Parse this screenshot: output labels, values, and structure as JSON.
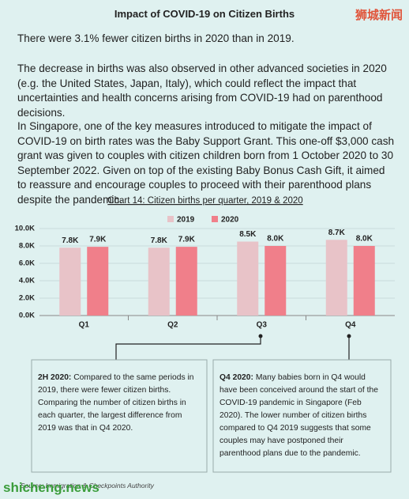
{
  "header": {
    "title": "Impact of COVID-19 on Citizen Births",
    "watermark": "狮城新闻"
  },
  "paragraphs": [
    "There were 3.1% fewer citizen births in 2020 than in 2019.",
    "The decrease in births was also observed in other advanced societies in 2020 (e.g. the United States, Japan, Italy), which could reflect the impact that uncertainties and health concerns arising from COVID-19 had on parenthood decisions.",
    "In Singapore, one of the key measures introduced to mitigate the impact of COVID-19 on birth rates was the Baby Support Grant. This one-off $3,000 cash grant was given to couples with citizen children born from 1 October 2020 to 30 September 2022. Given on top of the existing Baby Bonus Cash Gift, it aimed to reassure and encourage couples to proceed with their parenthood plans despite the pandemic."
  ],
  "chart_data": {
    "type": "bar",
    "title": "Chart 14: Citizen births per quarter, 2019 & 2020",
    "categories": [
      "Q1",
      "Q2",
      "Q3",
      "Q4"
    ],
    "series": [
      {
        "name": "2019",
        "color": "#e8c3c8",
        "values": [
          7800,
          7800,
          8500,
          8700
        ],
        "value_labels": [
          "7.8K",
          "7.8K",
          "8.5K",
          "8.7K"
        ]
      },
      {
        "name": "2020",
        "color": "#f07f8a",
        "values": [
          7900,
          7900,
          8000,
          8000
        ],
        "value_labels": [
          "7.9K",
          "7.9K",
          "8.0K",
          "8.0K"
        ]
      }
    ],
    "ylim": [
      0,
      10000
    ],
    "yticks": [
      {
        "value": 0,
        "label": "0.0K"
      },
      {
        "value": 2000,
        "label": "2.0K"
      },
      {
        "value": 4000,
        "label": "4.0K"
      },
      {
        "value": 6000,
        "label": "6.0K"
      },
      {
        "value": 8000,
        "label": "8.0K"
      },
      {
        "value": 10000,
        "label": "10.0K"
      }
    ],
    "grid": true,
    "legend": "top"
  },
  "notes": [
    {
      "lead": "2H 2020:",
      "text": "Compared to the same periods in 2019, there were fewer citizen births. Comparing the number of citizen births in each quarter, the largest difference from 2019 was that in Q4 2020."
    },
    {
      "lead": "Q4 2020:",
      "text": "Many babies born in Q4 would have been conceived around the start of the COVID-19 pandemic in Singapore (Feb 2020). The lower number of citizen births compared to Q4 2019 suggests that some couples may have postponed their parenthood plans due to the pandemic."
    }
  ],
  "source": "Source: Immigration & Checkpoints Authority",
  "footer_watermark": "shicheng.news"
}
